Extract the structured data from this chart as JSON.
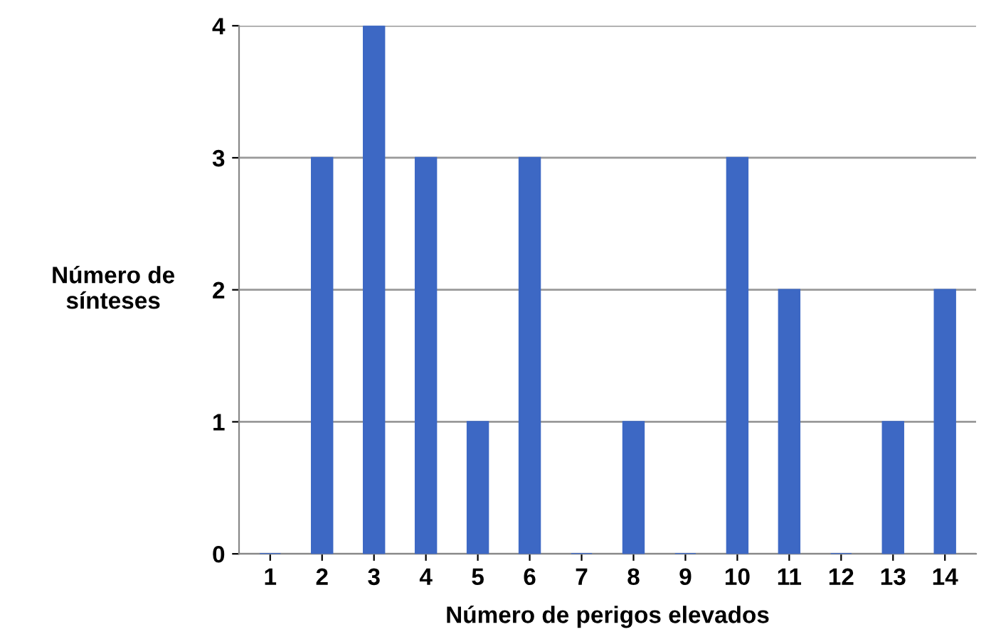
{
  "chart_data": {
    "type": "bar",
    "xlabel": "Número de perigos elevados",
    "ylabel": "Número de\nsínteses",
    "categories": [
      "1",
      "2",
      "3",
      "4",
      "5",
      "6",
      "7",
      "8",
      "9",
      "10",
      "11",
      "12",
      "13",
      "14"
    ],
    "values": [
      0,
      3,
      4,
      3,
      1,
      3,
      0,
      1,
      0,
      3,
      2,
      0,
      1,
      2
    ],
    "color": "#3d68c4",
    "ylim": [
      0,
      4
    ],
    "yticks": [
      0,
      1,
      2,
      3,
      4
    ],
    "grid": "y"
  }
}
